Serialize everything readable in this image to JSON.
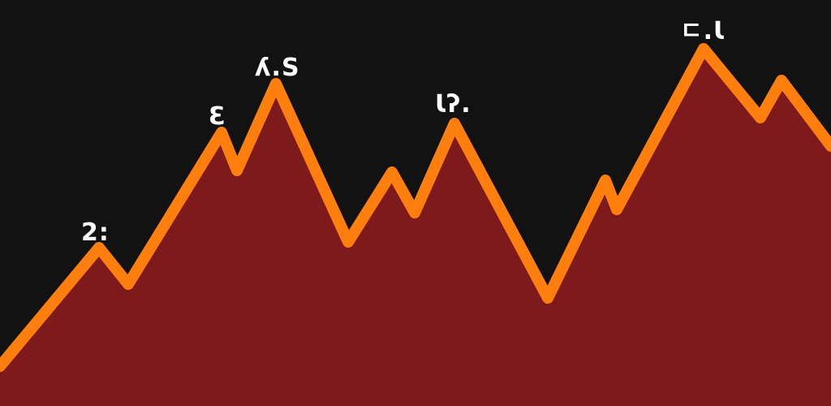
{
  "colors": {
    "background": "#121212",
    "fill": "#7f1a1c",
    "line": "#ff7f0e",
    "labels": "#ffffff"
  },
  "peak_labels": {
    "peak_1": "2:",
    "peak_2": "Ɛ",
    "peak_3": "ʎ.S",
    "peak_4": "Ɩʔ.",
    "peak_5": "ㄷ.Ɩ"
  }
}
